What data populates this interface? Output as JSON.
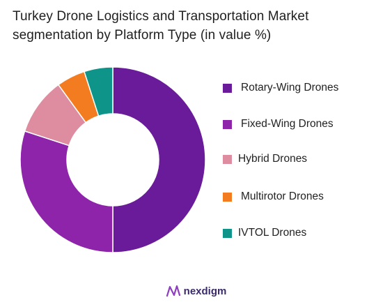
{
  "title_line1": "Turkey Drone Logistics and Transportation Market",
  "title_line2": "segmentation by Platform Type (in value %)",
  "brand": "nexdigm",
  "chart_data": {
    "type": "pie",
    "donut": true,
    "title": "Turkey Drone Logistics and Transportation Market segmentation by Platform Type (in value %)",
    "categories": [
      "Rotary-Wing Drones",
      "Fixed-Wing Drones",
      "Hybrid Drones",
      "Multirotor Drones",
      "IVTOL Drones"
    ],
    "values": [
      50,
      30,
      10,
      5,
      5
    ],
    "colors": [
      "#6a1b9a",
      "#8e24aa",
      "#de8ca0",
      "#f47c20",
      "#0e9488"
    ],
    "legend_position": "right"
  }
}
